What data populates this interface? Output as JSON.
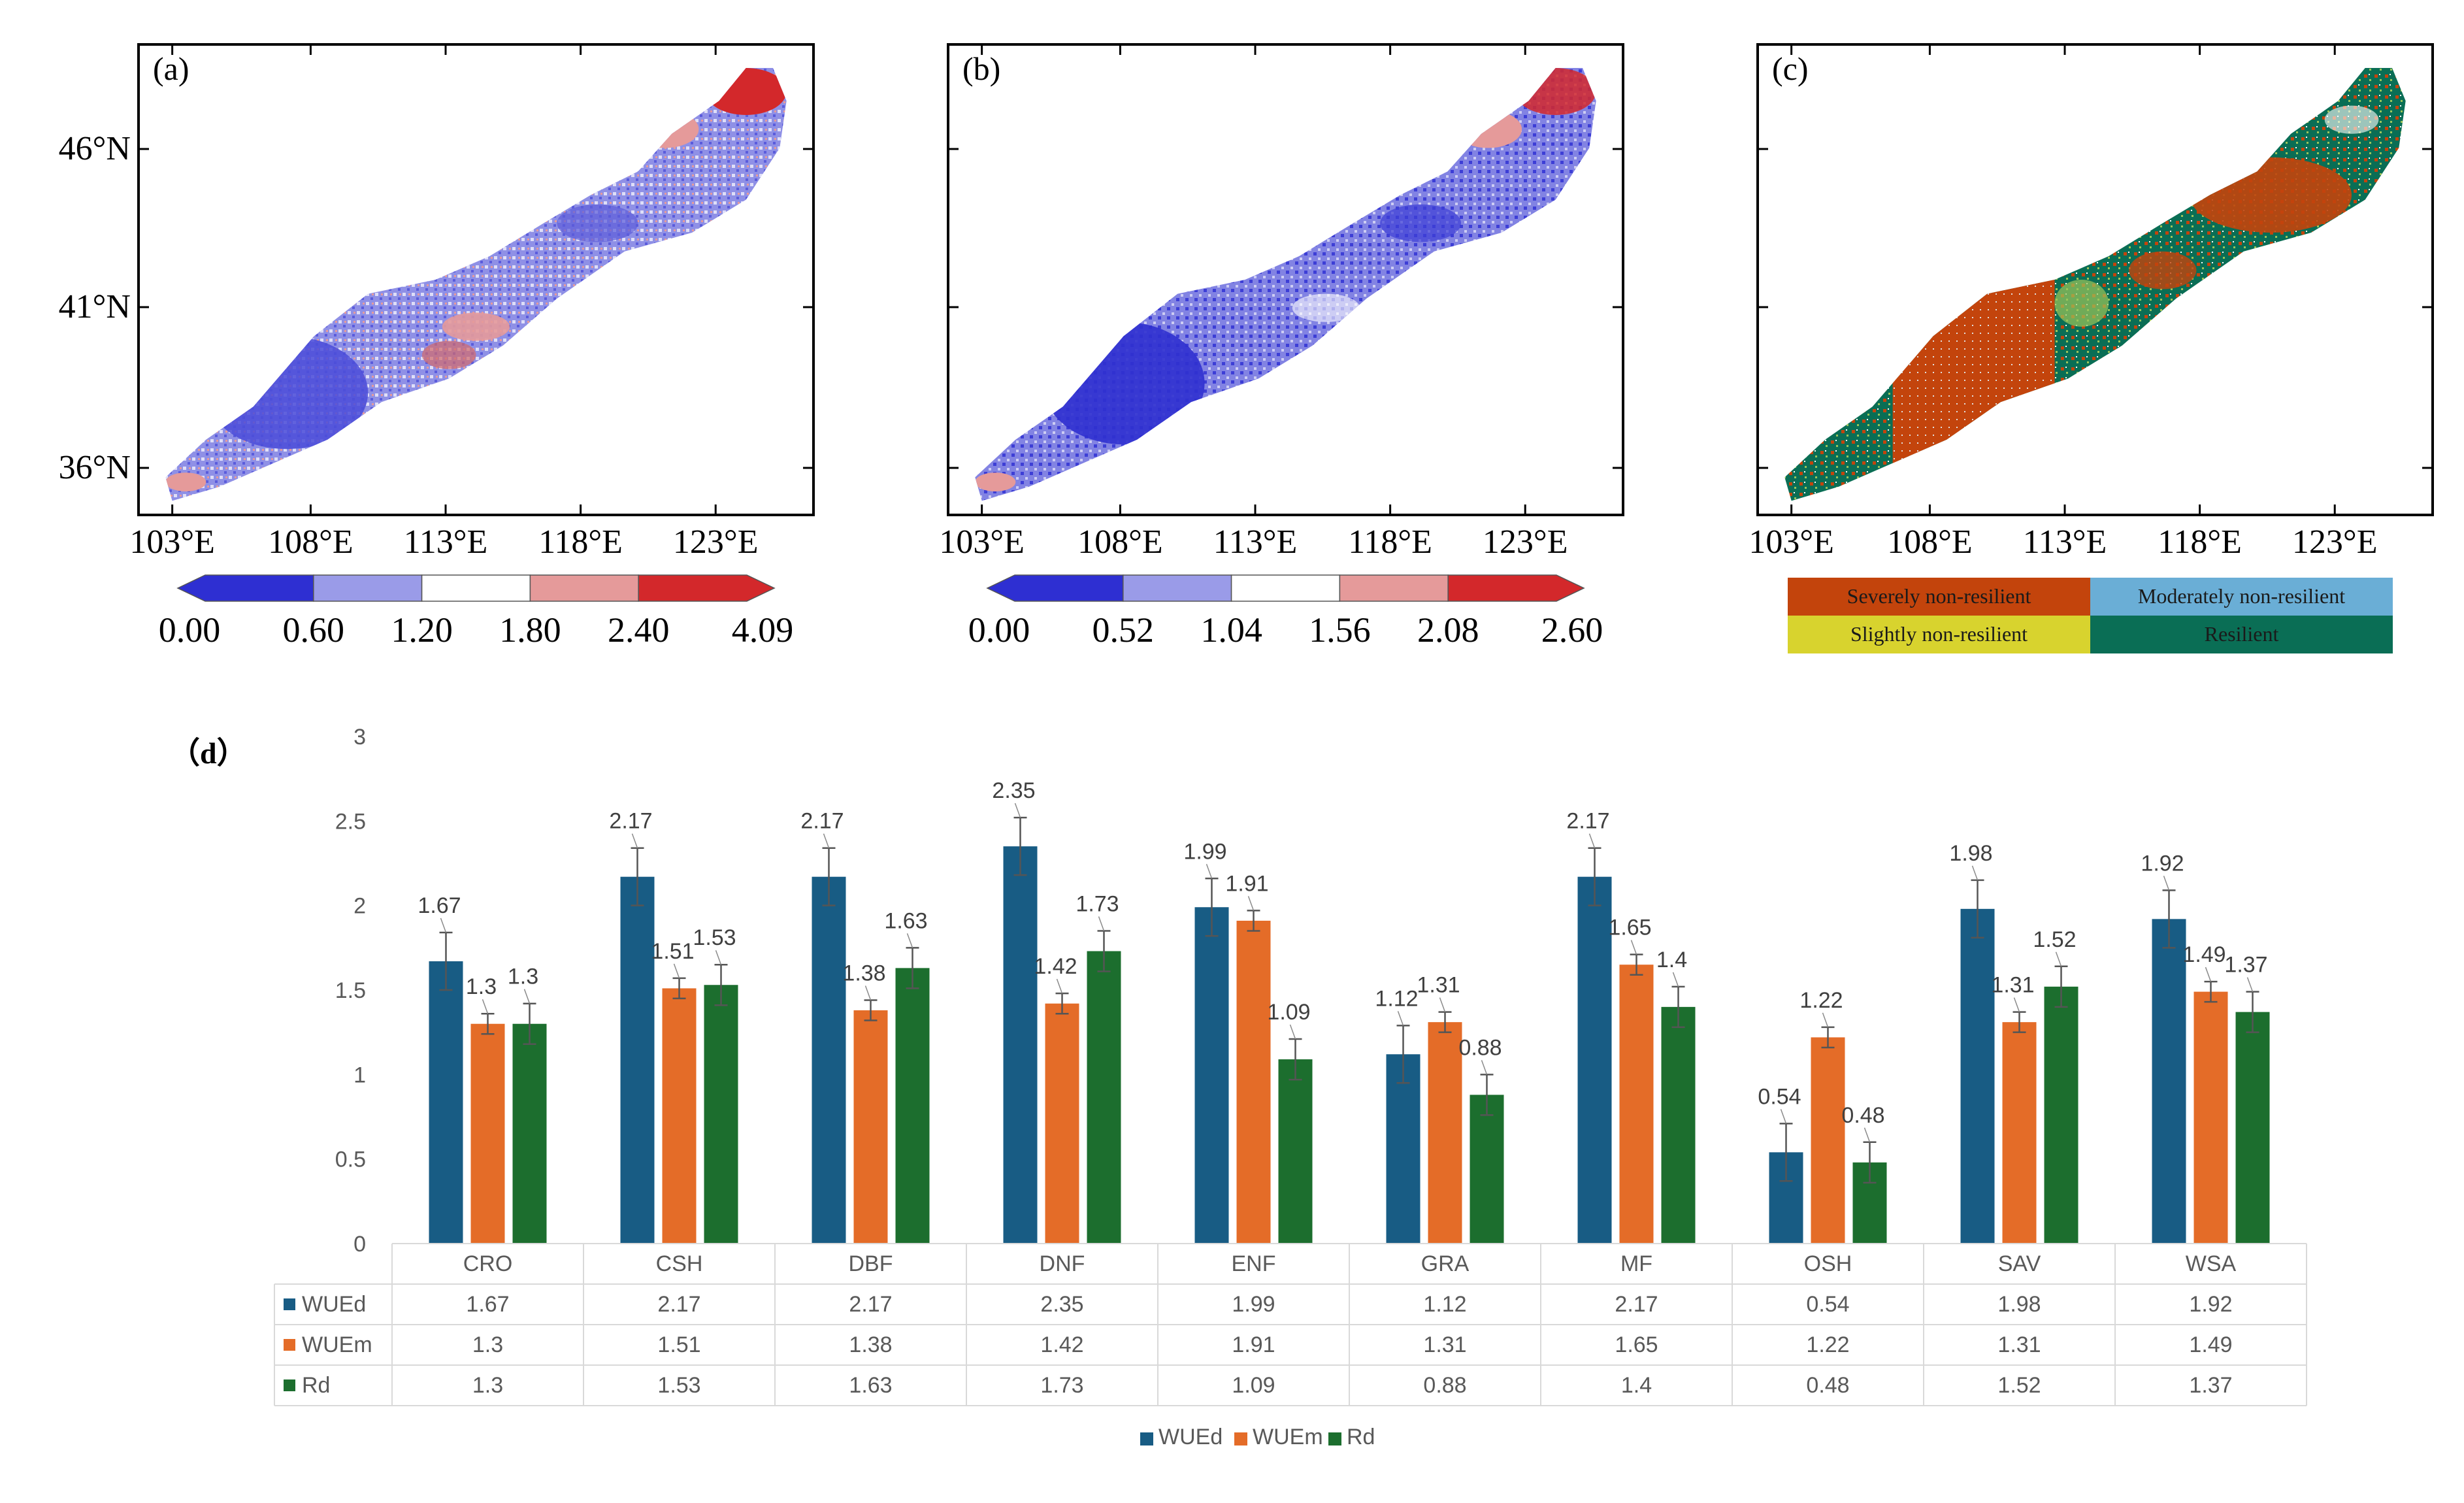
{
  "maps": [
    {
      "panel_label": "(a)",
      "colorbar": {
        "ticks": [
          "0.00",
          "0.60",
          "1.20",
          "1.80",
          "2.40",
          "4.09"
        ],
        "colors": [
          "#2e2fd2",
          "#9a9be8",
          "#ffffff",
          "#e59a9a",
          "#d3282b"
        ]
      }
    },
    {
      "panel_label": "(b)",
      "colorbar": {
        "ticks": [
          "0.00",
          "0.52",
          "1.04",
          "1.56",
          "2.08",
          "2.60"
        ],
        "colors": [
          "#2e2fd2",
          "#9a9be8",
          "#ffffff",
          "#e59a9a",
          "#d3282b"
        ]
      }
    },
    {
      "panel_label": "(c)",
      "legend": [
        {
          "label": "Severely non-resilient",
          "color": "#c3440c"
        },
        {
          "label": "Moderately non-resilient",
          "color": "#6aaed6"
        },
        {
          "label": "Slightly non-resilient",
          "color": "#d8d32e"
        },
        {
          "label": "Resilient",
          "color": "#0a6e55"
        }
      ]
    }
  ],
  "map_axes": {
    "lat_labels": [
      "46°N",
      "41°N",
      "36°N"
    ],
    "lon_labels": [
      "103°E",
      "108°E",
      "113°E",
      "118°E",
      "123°E"
    ]
  },
  "chart_data": {
    "type": "bar",
    "panel_label": "（d）",
    "categories": [
      "CRO",
      "CSH",
      "DBF",
      "DNF",
      "ENF",
      "GRA",
      "MF",
      "OSH",
      "SAV",
      "WSA"
    ],
    "series": [
      {
        "name": "WUEd",
        "color": "#185c84",
        "values": [
          1.67,
          2.17,
          2.17,
          2.35,
          1.99,
          1.12,
          2.17,
          0.54,
          1.98,
          1.92
        ]
      },
      {
        "name": "WUEm",
        "color": "#e46c28",
        "values": [
          1.3,
          1.51,
          1.38,
          1.42,
          1.91,
          1.31,
          1.65,
          1.22,
          1.31,
          1.49
        ]
      },
      {
        "name": "Rd",
        "color": "#1c6e2e",
        "values": [
          1.3,
          1.53,
          1.63,
          1.73,
          1.09,
          0.88,
          1.4,
          0.48,
          1.52,
          1.37
        ]
      }
    ],
    "error_bars": [
      [
        0.17,
        0.17,
        0.17,
        0.17,
        0.17,
        0.17,
        0.17,
        0.17,
        0.17,
        0.17
      ],
      [
        0.06,
        0.06,
        0.06,
        0.06,
        0.06,
        0.06,
        0.06,
        0.06,
        0.06,
        0.06
      ],
      [
        0.12,
        0.12,
        0.12,
        0.12,
        0.12,
        0.12,
        0.12,
        0.12,
        0.12,
        0.12
      ]
    ],
    "ylim": [
      0,
      3
    ],
    "yticks": [
      "0",
      "0.5",
      "1",
      "1.5",
      "2",
      "2.5",
      "3"
    ],
    "legend_position": "bottom",
    "data_table": true
  }
}
